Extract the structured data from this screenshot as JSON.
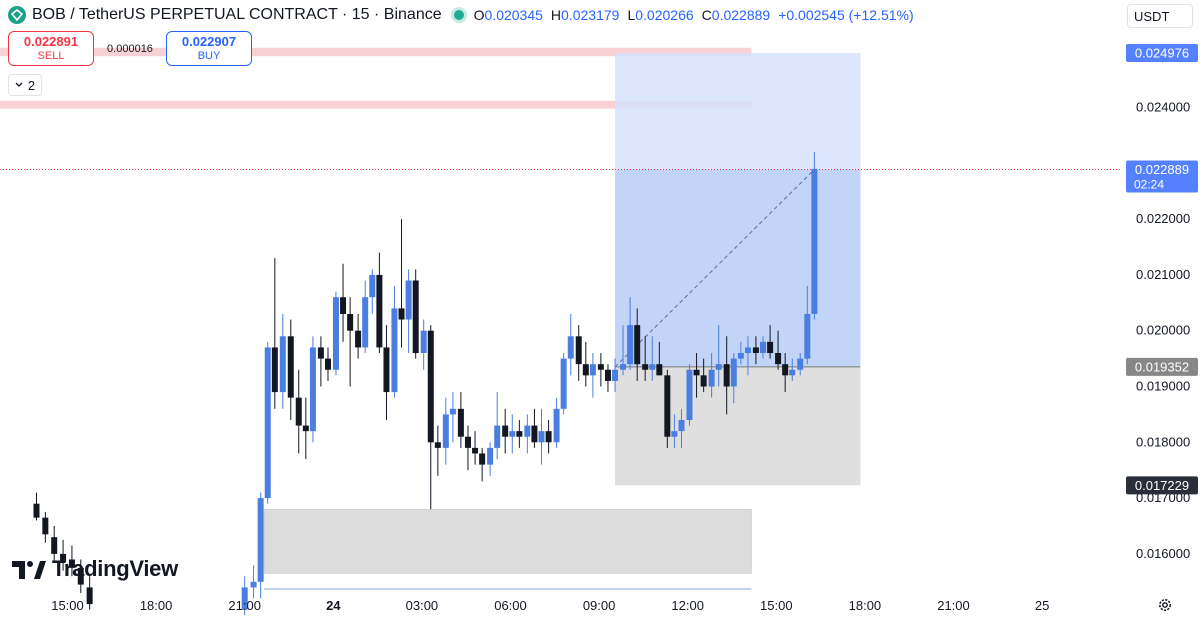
{
  "header": {
    "title": "BOB / TetherUS PERPETUAL CONTRACT · 15 · Binance",
    "ohlc": {
      "o_label": "O",
      "o_value": "0.020345",
      "h_label": "H",
      "h_value": "0.023179",
      "l_label": "L",
      "l_value": "0.020266",
      "c_label": "C",
      "c_value": "0.022889",
      "change": "+0.002545 (+12.51%)"
    }
  },
  "trade": {
    "sell_price": "0.022891",
    "sell_label": "SELL",
    "spread": "0.000016",
    "buy_price": "0.022907",
    "buy_label": "BUY"
  },
  "collapse_count": "2",
  "currency": "USDT",
  "brand": "TradingView",
  "colors": {
    "up": "#4a7ee0",
    "down": "#131722",
    "accent": "#2962ff",
    "target_zone": "#d6e2fb",
    "stop_zone": "#dcdcdc",
    "resistance": "#f7c9cc"
  },
  "chart_data": {
    "type": "candlestick",
    "ylim": [
      0.0153,
      0.0254
    ],
    "y_ticks": [
      "0.024000",
      "0.022000",
      "0.021000",
      "0.020000",
      "0.019000",
      "0.018000",
      "0.017000",
      "0.016000"
    ],
    "x_ticks": [
      "15:00",
      "18:00",
      "21:00",
      "24",
      "03:00",
      "06:00",
      "09:00",
      "12:00",
      "15:00",
      "18:00",
      "21:00",
      "25"
    ],
    "price_labels": [
      {
        "text": "0.024976",
        "value": 0.024976,
        "style": "blue"
      },
      {
        "text": "0.022889",
        "sub": "02:24",
        "value": 0.022889,
        "style": "blue"
      },
      {
        "text": "0.019352",
        "value": 0.019352,
        "style": "gray"
      },
      {
        "text": "0.017229",
        "value": 0.017229,
        "style": "black"
      }
    ],
    "zones": [
      {
        "kind": "resistance",
        "from": 0.02492,
        "to": 0.02507,
        "t_from": 0.0,
        "t_to": 7.72
      },
      {
        "kind": "resistance",
        "from": 0.02398,
        "to": 0.02412,
        "t_from": 0.0,
        "t_to": 7.72
      },
      {
        "kind": "demand",
        "from": 0.01565,
        "to": 0.0168,
        "t_from": 2.22,
        "t_to": 7.72
      }
    ],
    "position": {
      "t_from": 6.18,
      "t_to": 8.95,
      "entry": 0.019352,
      "target": 0.024976,
      "stop": 0.017229
    },
    "last_price": 0.022889,
    "candles": [
      [
        -0.35,
        0.0169,
        0.0171,
        0.0166,
        0.01665
      ],
      [
        -0.25,
        0.01665,
        0.01675,
        0.0162,
        0.01635
      ],
      [
        -0.15,
        0.0163,
        0.0165,
        0.01585,
        0.016
      ],
      [
        -0.05,
        0.016,
        0.01625,
        0.0157,
        0.01585
      ],
      [
        0.05,
        0.0159,
        0.01615,
        0.0156,
        0.01575
      ],
      [
        0.15,
        0.01575,
        0.0159,
        0.0153,
        0.01545
      ],
      [
        0.25,
        0.0154,
        0.0156,
        0.015,
        0.0151
      ],
      [
        2.0,
        0.015,
        0.0156,
        0.0149,
        0.0154
      ],
      [
        2.1,
        0.0154,
        0.0158,
        0.0152,
        0.0155
      ],
      [
        2.18,
        0.0155,
        0.0171,
        0.0152,
        0.017
      ],
      [
        2.26,
        0.017,
        0.0198,
        0.0169,
        0.0197
      ],
      [
        2.34,
        0.0197,
        0.0213,
        0.0186,
        0.0189
      ],
      [
        2.43,
        0.0189,
        0.0203,
        0.0186,
        0.0199
      ],
      [
        2.52,
        0.0199,
        0.0202,
        0.0184,
        0.0188
      ],
      [
        2.61,
        0.0188,
        0.0193,
        0.0178,
        0.0183
      ],
      [
        2.69,
        0.0183,
        0.0188,
        0.0177,
        0.0182
      ],
      [
        2.77,
        0.0182,
        0.0199,
        0.018,
        0.0197
      ],
      [
        2.86,
        0.0197,
        0.0199,
        0.019,
        0.0195
      ],
      [
        2.94,
        0.0195,
        0.0197,
        0.0191,
        0.0193
      ],
      [
        3.03,
        0.0193,
        0.0207,
        0.0192,
        0.0206
      ],
      [
        3.11,
        0.0206,
        0.0212,
        0.0198,
        0.0203
      ],
      [
        3.19,
        0.0203,
        0.0206,
        0.019,
        0.02
      ],
      [
        3.28,
        0.02,
        0.0203,
        0.0195,
        0.0197
      ],
      [
        3.36,
        0.0197,
        0.0209,
        0.0196,
        0.0206
      ],
      [
        3.44,
        0.0206,
        0.0211,
        0.0203,
        0.021
      ],
      [
        3.52,
        0.021,
        0.0214,
        0.0196,
        0.0197
      ],
      [
        3.6,
        0.0197,
        0.0201,
        0.0184,
        0.0189
      ],
      [
        3.69,
        0.0189,
        0.0208,
        0.0188,
        0.0204
      ],
      [
        3.77,
        0.0204,
        0.022,
        0.0197,
        0.0202
      ],
      [
        3.85,
        0.0202,
        0.0211,
        0.0196,
        0.0209
      ],
      [
        3.93,
        0.0209,
        0.0211,
        0.0195,
        0.0196
      ],
      [
        4.02,
        0.0196,
        0.0202,
        0.0193,
        0.02
      ],
      [
        4.1,
        0.02,
        0.0201,
        0.0168,
        0.018
      ],
      [
        4.18,
        0.018,
        0.0183,
        0.0174,
        0.0179
      ],
      [
        4.27,
        0.0179,
        0.0188,
        0.0176,
        0.0185
      ],
      [
        4.35,
        0.0185,
        0.0189,
        0.018,
        0.0186
      ],
      [
        4.44,
        0.0186,
        0.0189,
        0.0179,
        0.0181
      ],
      [
        4.52,
        0.0181,
        0.0183,
        0.0175,
        0.0179
      ],
      [
        4.6,
        0.0179,
        0.0182,
        0.0176,
        0.0178
      ],
      [
        4.68,
        0.0178,
        0.0179,
        0.0173,
        0.0176
      ],
      [
        4.77,
        0.0176,
        0.018,
        0.0174,
        0.0179
      ],
      [
        4.85,
        0.0179,
        0.0189,
        0.0177,
        0.0183
      ],
      [
        4.94,
        0.0183,
        0.0186,
        0.0178,
        0.0181
      ],
      [
        5.02,
        0.0181,
        0.0185,
        0.0178,
        0.0182
      ],
      [
        5.1,
        0.0182,
        0.0184,
        0.0179,
        0.0181
      ],
      [
        5.19,
        0.0181,
        0.0185,
        0.0178,
        0.0183
      ],
      [
        5.27,
        0.0183,
        0.0186,
        0.0179,
        0.018
      ],
      [
        5.35,
        0.018,
        0.0186,
        0.0176,
        0.0182
      ],
      [
        5.43,
        0.0182,
        0.0184,
        0.0178,
        0.018
      ],
      [
        5.52,
        0.018,
        0.0188,
        0.0179,
        0.0186
      ],
      [
        5.6,
        0.0186,
        0.0196,
        0.0185,
        0.0195
      ],
      [
        5.68,
        0.0195,
        0.0203,
        0.0192,
        0.0199
      ],
      [
        5.77,
        0.0199,
        0.0201,
        0.0191,
        0.0194
      ],
      [
        5.85,
        0.0194,
        0.0198,
        0.019,
        0.0192
      ],
      [
        5.93,
        0.0192,
        0.0196,
        0.0188,
        0.0194
      ],
      [
        6.02,
        0.0194,
        0.0196,
        0.019,
        0.0193
      ],
      [
        6.1,
        0.0193,
        0.0194,
        0.0189,
        0.0191
      ],
      [
        6.18,
        0.0191,
        0.0195,
        0.0189,
        0.0193
      ],
      [
        6.27,
        0.0193,
        0.0201,
        0.0192,
        0.0194
      ],
      [
        6.35,
        0.0194,
        0.0206,
        0.0193,
        0.0201
      ],
      [
        6.43,
        0.0201,
        0.0204,
        0.0191,
        0.0194
      ],
      [
        6.52,
        0.0194,
        0.0199,
        0.0191,
        0.0193
      ],
      [
        6.6,
        0.0193,
        0.0199,
        0.0191,
        0.0194
      ],
      [
        6.68,
        0.0194,
        0.0198,
        0.0192,
        0.0192
      ],
      [
        6.77,
        0.0192,
        0.0193,
        0.0179,
        0.0181
      ],
      [
        6.85,
        0.0181,
        0.0185,
        0.0179,
        0.0182
      ],
      [
        6.93,
        0.0182,
        0.0186,
        0.0179,
        0.0184
      ],
      [
        7.02,
        0.0184,
        0.0194,
        0.0183,
        0.0193
      ],
      [
        7.1,
        0.0193,
        0.0196,
        0.0188,
        0.0192
      ],
      [
        7.18,
        0.0192,
        0.0195,
        0.0189,
        0.019
      ],
      [
        7.27,
        0.019,
        0.0196,
        0.0188,
        0.0193
      ],
      [
        7.35,
        0.0193,
        0.0201,
        0.019,
        0.0194
      ],
      [
        7.44,
        0.0194,
        0.0199,
        0.0185,
        0.019
      ],
      [
        7.52,
        0.019,
        0.0196,
        0.0187,
        0.0195
      ],
      [
        7.6,
        0.0195,
        0.0198,
        0.0194,
        0.0196
      ],
      [
        7.68,
        0.0196,
        0.0199,
        0.0192,
        0.0197
      ],
      [
        7.77,
        0.0197,
        0.0199,
        0.0194,
        0.0196
      ],
      [
        7.85,
        0.0196,
        0.0199,
        0.0195,
        0.0198
      ],
      [
        7.93,
        0.0198,
        0.0201,
        0.0195,
        0.0196
      ],
      [
        8.02,
        0.0196,
        0.02,
        0.0193,
        0.0194
      ],
      [
        8.1,
        0.0194,
        0.0196,
        0.0189,
        0.0192
      ],
      [
        8.18,
        0.0192,
        0.0195,
        0.0191,
        0.0193
      ],
      [
        8.27,
        0.0193,
        0.0196,
        0.0192,
        0.0195
      ],
      [
        8.35,
        0.0195,
        0.0208,
        0.0194,
        0.0203
      ],
      [
        8.43,
        0.0203,
        0.0232,
        0.0202,
        0.0229
      ]
    ]
  }
}
